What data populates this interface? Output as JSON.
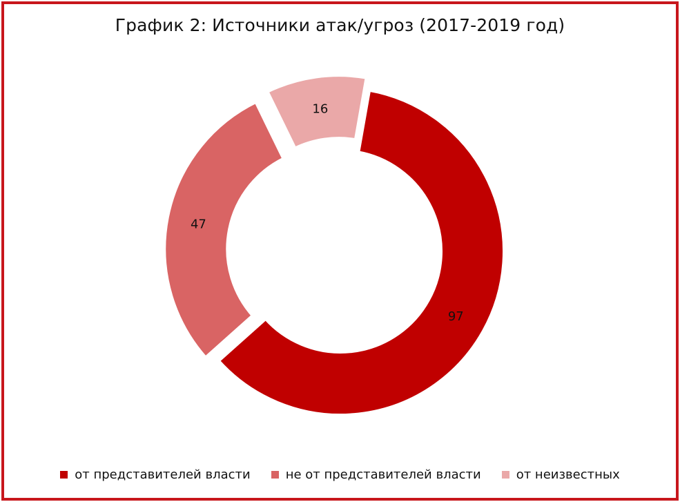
{
  "chart_data": {
    "type": "pie",
    "title": "График 2: Источники атак/угроз (2017-2019 год)",
    "series": [
      {
        "name": "от представителей власти",
        "value": 97,
        "color": "#c00000",
        "label": "97"
      },
      {
        "name": "не от представителей власти",
        "value": 47,
        "color": "#d96464",
        "label": "47"
      },
      {
        "name": "от неизвестных",
        "value": 16,
        "color": "#eaa8a8",
        "label": "16"
      }
    ],
    "legend_position": "bottom",
    "style": "donut-exploded"
  },
  "frame": {
    "border_color": "#c8171c"
  }
}
